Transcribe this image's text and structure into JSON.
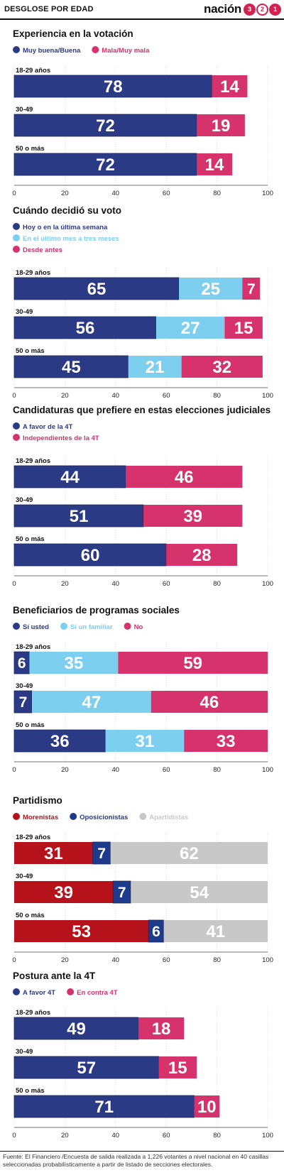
{
  "header": {
    "title": "DESGLOSE POR EDAD",
    "brand_word": "nación",
    "brand_numbers": [
      "3",
      "2",
      "1"
    ]
  },
  "footer": {
    "source": "Fuente: El Financiero /Encuesta de salida realizada a 1,226 votantes a nivel nacional en 40 casillas seleccionadas probabilísticamente a partir de listado de secciones electorales."
  },
  "colors": {
    "navy": "#2b3a85",
    "pink": "#d6336c",
    "lightblue": "#7dcff0",
    "darkred": "#b5121b",
    "blue": "#1e3a8a",
    "gray": "#c8c8c8"
  },
  "chart_data": [
    {
      "type": "bar",
      "orientation": "horizontal",
      "stacked": true,
      "title": "Experiencia en la votación",
      "categories": [
        "18-29 años",
        "30-49",
        "50 o más"
      ],
      "series": [
        {
          "name": "Muy buena/Buena",
          "color": "#2b3a85",
          "values": [
            78,
            72,
            72
          ]
        },
        {
          "name": "Mala/Muy mala",
          "color": "#d6336c",
          "values": [
            14,
            19,
            14
          ]
        }
      ],
      "xlim": [
        0,
        100
      ],
      "xticks": [
        0,
        20,
        40,
        60,
        80,
        100
      ],
      "grid": true,
      "legend": "top-left"
    },
    {
      "type": "bar",
      "orientation": "horizontal",
      "stacked": true,
      "title": "Cuándo decidió su voto",
      "categories": [
        "18-29 años",
        "30-49",
        "50 o más"
      ],
      "series": [
        {
          "name": "Hoy o en la última semana",
          "color": "#2b3a85",
          "values": [
            65,
            56,
            45
          ]
        },
        {
          "name": "En el último mes a tres meses",
          "color": "#7dcff0",
          "values": [
            25,
            27,
            21
          ]
        },
        {
          "name": "Desde antes",
          "color": "#d6336c",
          "values": [
            7,
            15,
            32
          ]
        }
      ],
      "xlim": [
        0,
        100
      ],
      "xticks": [
        0,
        20,
        40,
        60,
        80,
        100
      ],
      "grid": true,
      "legend": "top-left"
    },
    {
      "type": "bar",
      "orientation": "horizontal",
      "stacked": true,
      "title": "Candidaturas que prefiere en estas elecciones judiciales",
      "categories": [
        "18-29 años",
        "30-49",
        "50 o más"
      ],
      "series": [
        {
          "name": "A favor de la 4T",
          "color": "#2b3a85",
          "values": [
            44,
            51,
            60
          ]
        },
        {
          "name": "Independientes de la 4T",
          "color": "#d6336c",
          "values": [
            46,
            39,
            28
          ]
        }
      ],
      "xlim": [
        0,
        100
      ],
      "xticks": [
        0,
        20,
        40,
        60,
        80,
        100
      ],
      "grid": true,
      "legend": "top-left"
    },
    {
      "type": "bar",
      "orientation": "horizontal",
      "stacked": true,
      "title": "Beneficiarios de programas sociales",
      "categories": [
        "18-29 años",
        "30-49",
        "50 o más"
      ],
      "series": [
        {
          "name": "Sí usted",
          "color": "#2b3a85",
          "values": [
            6,
            7,
            36
          ]
        },
        {
          "name": "Sí un familiar",
          "color": "#7dcff0",
          "values": [
            35,
            47,
            31
          ]
        },
        {
          "name": "No",
          "color": "#d6336c",
          "values": [
            59,
            46,
            33
          ]
        }
      ],
      "xlim": [
        0,
        100
      ],
      "xticks": [
        0,
        20,
        40,
        60,
        80,
        100
      ],
      "grid": true,
      "legend": "top-left"
    },
    {
      "type": "bar",
      "orientation": "horizontal",
      "stacked": true,
      "title": "Partidismo",
      "categories": [
        "18-29 años",
        "30-49",
        "50 o más"
      ],
      "series": [
        {
          "name": "Morenistas",
          "color": "#b5121b",
          "values": [
            31,
            39,
            53
          ]
        },
        {
          "name": "Oposicionistas",
          "color": "#1e3a8a",
          "values": [
            7,
            7,
            6
          ]
        },
        {
          "name": "Apartidistas",
          "color": "#c8c8c8",
          "values": [
            62,
            54,
            41
          ]
        }
      ],
      "xlim": [
        0,
        100
      ],
      "xticks": [
        0,
        20,
        40,
        60,
        80,
        100
      ],
      "grid": true,
      "legend": "top-left"
    },
    {
      "type": "bar",
      "orientation": "horizontal",
      "stacked": true,
      "title": "Postura ante la 4T",
      "categories": [
        "18-29 años",
        "30-49",
        "50 o más"
      ],
      "series": [
        {
          "name": "A favor 4T",
          "color": "#2b3a85",
          "values": [
            49,
            57,
            71
          ]
        },
        {
          "name": "En contra 4T",
          "color": "#d6336c",
          "values": [
            18,
            15,
            10
          ]
        }
      ],
      "xlim": [
        0,
        100
      ],
      "xticks": [
        0,
        20,
        40,
        60,
        80,
        100
      ],
      "grid": true,
      "legend": "top-left"
    }
  ]
}
